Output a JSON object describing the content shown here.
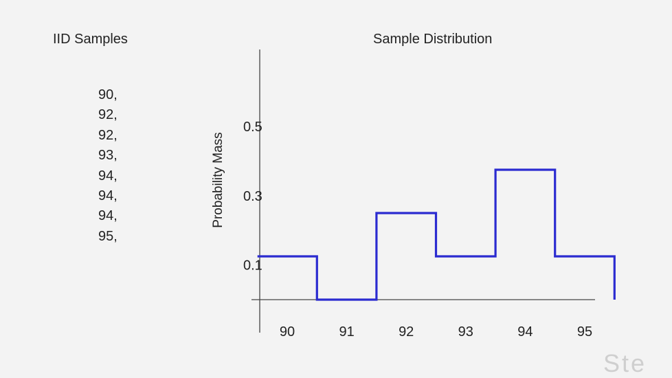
{
  "left_panel": {
    "title": "IID Samples",
    "samples": [
      "90,",
      "92,",
      "92,",
      "93,",
      "94,",
      "94,",
      "94,",
      "95,"
    ]
  },
  "chart_data": {
    "type": "line",
    "title": "Sample Distribution",
    "ylabel": "Probability Mass",
    "xlabel": "",
    "categories": [
      "90",
      "91",
      "92",
      "93",
      "94",
      "95"
    ],
    "values": [
      0.125,
      0,
      0.25,
      0.125,
      0.375,
      0.125
    ],
    "yticks": [
      0.1,
      0.3,
      0.5
    ],
    "ytick_labels": [
      "0.1",
      "0.3",
      "0.5"
    ],
    "ylim": [
      0,
      0.6
    ],
    "xlim": [
      89.5,
      95.5
    ],
    "step": true,
    "grid": false,
    "line_color": "#2b2bd0"
  },
  "watermark": "Ste"
}
